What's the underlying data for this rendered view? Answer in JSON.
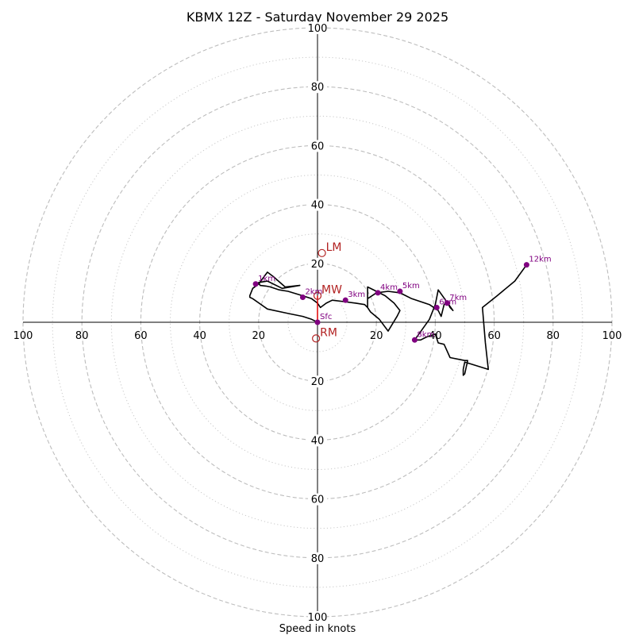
{
  "chart_data": {
    "type": "hodograph",
    "title": "KBMX 12Z - Saturday November 29 2025",
    "xlabel": "Speed in knots",
    "units": "knots",
    "max_speed": 100,
    "major_rings": [
      20,
      40,
      60,
      80,
      100
    ],
    "minor_rings": [
      10,
      30,
      50,
      70,
      90
    ],
    "tick_values": [
      20,
      40,
      60,
      80,
      100
    ],
    "grid": true,
    "trace_color": "#000000",
    "marker_color": "#800080",
    "motion_color": "#b22222",
    "trace": [
      [
        0,
        0
      ],
      [
        -2,
        1
      ],
      [
        -5,
        2
      ],
      [
        -10,
        3
      ],
      [
        -17,
        4.5
      ],
      [
        -22,
        8
      ],
      [
        -23,
        8.5
      ],
      [
        -23,
        9
      ],
      [
        -22,
        11.5
      ],
      [
        -20,
        13
      ],
      [
        -17,
        17
      ],
      [
        -15,
        15.5
      ],
      [
        -11,
        12
      ],
      [
        -6,
        12.5
      ],
      [
        -12,
        11.5
      ],
      [
        -17,
        14
      ],
      [
        -20,
        13.5
      ],
      [
        -19.5,
        12.5
      ],
      [
        -17.5,
        12.3
      ],
      [
        -16,
        12
      ],
      [
        -13,
        11
      ],
      [
        -10,
        10.5
      ],
      [
        -5,
        9
      ],
      [
        -2,
        8
      ],
      [
        0,
        6.5
      ],
      [
        1,
        5
      ],
      [
        3,
        6.5
      ],
      [
        5,
        7.5
      ],
      [
        9,
        7
      ],
      [
        13,
        6.5
      ],
      [
        16,
        6
      ],
      [
        17,
        5
      ],
      [
        17,
        12
      ],
      [
        20,
        10.5
      ],
      [
        23,
        9
      ],
      [
        26,
        6.5
      ],
      [
        28,
        4
      ],
      [
        27,
        2
      ],
      [
        24,
        -3
      ],
      [
        21,
        1
      ],
      [
        18,
        3.5
      ],
      [
        17,
        5
      ],
      [
        17,
        8
      ],
      [
        20,
        10
      ],
      [
        24,
        10.5
      ],
      [
        28,
        10
      ],
      [
        32,
        8
      ],
      [
        38,
        6
      ],
      [
        41,
        4
      ],
      [
        42,
        2
      ],
      [
        43,
        6
      ],
      [
        44,
        7
      ],
      [
        45,
        5
      ],
      [
        46,
        4
      ],
      [
        41,
        11
      ],
      [
        40,
        6
      ],
      [
        38,
        1
      ],
      [
        33,
        -6
      ],
      [
        35,
        -6
      ],
      [
        37,
        -5
      ],
      [
        40,
        -4
      ],
      [
        41,
        -7
      ],
      [
        43,
        -7.5
      ],
      [
        45,
        -12
      ],
      [
        50,
        -13
      ],
      [
        51,
        -13
      ],
      [
        50,
        -17.5
      ],
      [
        49.5,
        -18
      ],
      [
        49.5,
        -16
      ],
      [
        50,
        -13.5
      ],
      [
        58,
        -16
      ],
      [
        57,
        -7
      ],
      [
        56,
        5
      ],
      [
        61,
        9
      ],
      [
        67,
        14
      ],
      [
        71,
        19.5
      ]
    ],
    "height_markers": [
      {
        "label": "Sfc",
        "u": 0,
        "v": 0
      },
      {
        "label": "1km",
        "u": -21,
        "v": 13
      },
      {
        "label": "2km",
        "u": -5,
        "v": 8.5
      },
      {
        "label": "3km",
        "u": 9.5,
        "v": 7.5
      },
      {
        "label": "4km",
        "u": 20.5,
        "v": 10
      },
      {
        "label": "5km",
        "u": 28,
        "v": 10.5
      },
      {
        "label": "6km",
        "u": 40.5,
        "v": 5
      },
      {
        "label": "7km",
        "u": 44,
        "v": 6.5
      },
      {
        "label": "8km",
        "u": 33,
        "v": -6
      },
      {
        "label": "12km",
        "u": 71,
        "v": 19.5
      }
    ],
    "storm_motions": [
      {
        "label": "LM",
        "u": 1.5,
        "v": 23.5
      },
      {
        "label": "MW",
        "u": 0,
        "v": 9
      },
      {
        "label": "RM",
        "u": -0.5,
        "v": -5.5
      }
    ]
  }
}
